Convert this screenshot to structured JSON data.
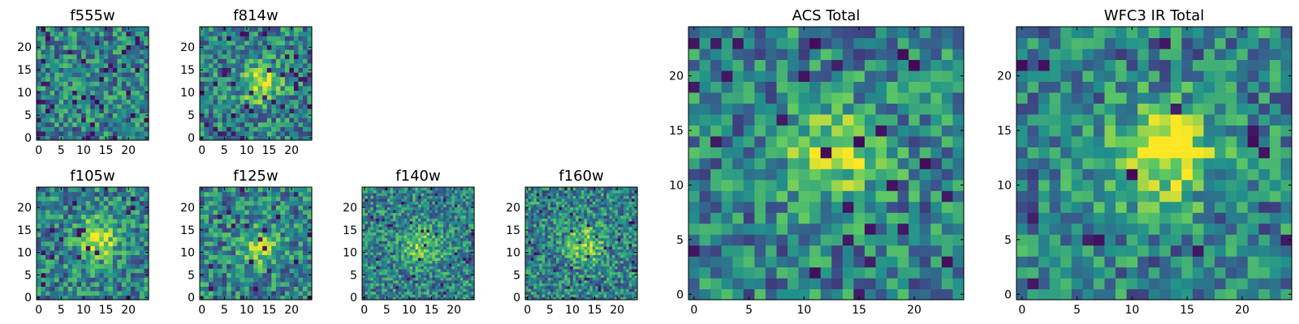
{
  "palette": [
    "#440154",
    "#3b528b",
    "#21918c",
    "#5ec962",
    "#fde725"
  ],
  "chart_data": [
    {
      "type": "heatmap",
      "title": "f555w",
      "grid": 25,
      "xlim": [
        0,
        25
      ],
      "ylim": [
        0,
        25
      ],
      "xticks": [
        0,
        5,
        10,
        15,
        20
      ],
      "yticks": [
        0,
        5,
        10,
        15,
        20
      ],
      "blob": null,
      "seed": 11,
      "dark_fraction": 0.06
    },
    {
      "type": "heatmap",
      "title": "f814w",
      "grid": 25,
      "xlim": [
        0,
        25
      ],
      "ylim": [
        0,
        25
      ],
      "xticks": [
        0,
        5,
        10,
        15,
        20
      ],
      "yticks": [
        0,
        5,
        10,
        15,
        20
      ],
      "blob": {
        "x": 13,
        "y": 12,
        "strength": 0.45
      },
      "seed": 23,
      "dark_fraction": 0.05
    },
    {
      "type": "heatmap",
      "title": "f105w",
      "grid": 25,
      "xlim": [
        0,
        25
      ],
      "ylim": [
        0,
        25
      ],
      "xticks": [
        0,
        5,
        10,
        15,
        20
      ],
      "yticks": [
        0,
        5,
        10,
        15,
        20
      ],
      "blob": {
        "x": 13,
        "y": 13,
        "strength": 0.5
      },
      "seed": 37,
      "dark_fraction": 0.03
    },
    {
      "type": "heatmap",
      "title": "f125w",
      "grid": 25,
      "xlim": [
        0,
        25
      ],
      "ylim": [
        0,
        25
      ],
      "xticks": [
        0,
        5,
        10,
        15,
        20
      ],
      "yticks": [
        0,
        5,
        10,
        15,
        20
      ],
      "blob": {
        "x": 13,
        "y": 11,
        "strength": 0.35
      },
      "seed": 41,
      "dark_fraction": 0.03
    },
    {
      "type": "heatmap",
      "title": "f140w",
      "grid": 40,
      "xlim": [
        0,
        25
      ],
      "ylim": [
        0,
        25
      ],
      "xticks": [
        0,
        5,
        10,
        15,
        20
      ],
      "yticks": [
        0,
        5,
        10,
        15,
        20
      ],
      "blob": {
        "x": 13,
        "y": 12,
        "strength": 0.3
      },
      "seed": 53,
      "dark_fraction": 0.02
    },
    {
      "type": "heatmap",
      "title": "f160w",
      "grid": 40,
      "xlim": [
        0,
        25
      ],
      "ylim": [
        0,
        25
      ],
      "xticks": [
        0,
        5,
        10,
        15,
        20
      ],
      "yticks": [
        0,
        5,
        10,
        15,
        20
      ],
      "blob": {
        "x": 13,
        "y": 12,
        "strength": 0.35
      },
      "seed": 67,
      "dark_fraction": 0.02
    },
    {
      "type": "heatmap",
      "title": "ACS Total",
      "grid": 25,
      "xlim": [
        0,
        25
      ],
      "ylim": [
        0,
        25
      ],
      "xticks": [
        0,
        5,
        10,
        15,
        20
      ],
      "yticks": [
        0,
        5,
        10,
        15,
        20
      ],
      "blob": {
        "x": 13,
        "y": 13,
        "strength": 0.45
      },
      "seed": 71,
      "dark_fraction": 0.04
    },
    {
      "type": "heatmap",
      "title": "WFC3 IR Total",
      "grid": 25,
      "xlim": [
        0,
        25
      ],
      "ylim": [
        0,
        25
      ],
      "xticks": [
        0,
        5,
        10,
        15,
        20
      ],
      "yticks": [
        0,
        5,
        10,
        15,
        20
      ],
      "blob": {
        "x": 13,
        "y": 13,
        "strength": 0.6
      },
      "seed": 89,
      "dark_fraction": 0.02
    }
  ]
}
